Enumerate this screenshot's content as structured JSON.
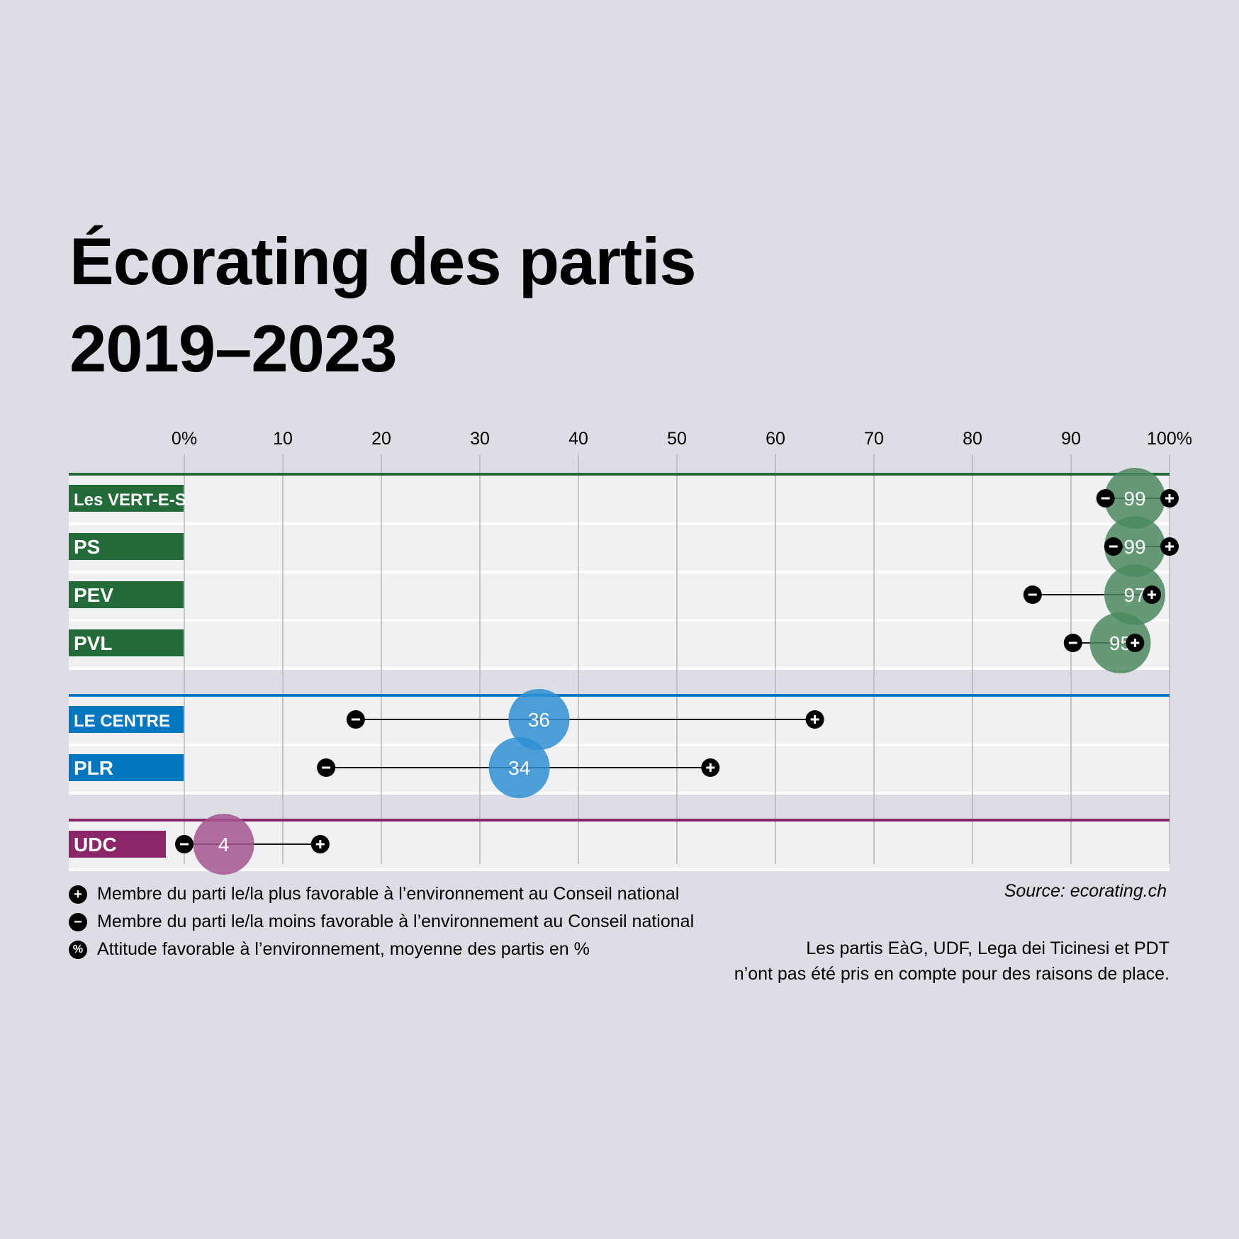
{
  "title_line1": "Écorating des partis",
  "title_line2": "2019–2023",
  "chart_data": {
    "type": "dot-range",
    "title": "Écorating des partis 2019–2023",
    "xlim": [
      0,
      100
    ],
    "ticks": [
      0,
      10,
      20,
      30,
      40,
      50,
      60,
      70,
      80,
      90,
      100
    ],
    "tick_labels": [
      "0%",
      "10",
      "20",
      "30",
      "40",
      "50",
      "60",
      "70",
      "80",
      "90",
      "100%"
    ],
    "groups": [
      {
        "color": "#236b38",
        "bubble": "#4c8a5f",
        "parties": [
          {
            "name": "Les VERT-E-S",
            "value": 99,
            "min": 93.5,
            "max": 100
          },
          {
            "name": "PS",
            "value": 99,
            "min": 94.3,
            "max": 100
          },
          {
            "name": "PEV",
            "value": 97,
            "min": 86.1,
            "max": 98.2
          },
          {
            "name": "PVL",
            "value": 95,
            "min": 90.2,
            "max": 96.5
          }
        ]
      },
      {
        "color": "#0077c0",
        "bubble": "#2f8fd2",
        "parties": [
          {
            "name": "LE CENTRE",
            "value": 36,
            "min": 17.4,
            "max": 64
          },
          {
            "name": "PLR",
            "value": 34,
            "min": 14.4,
            "max": 53.4
          }
        ]
      },
      {
        "color": "#8b2769",
        "bubble": "#a4558f",
        "parties": [
          {
            "name": "UDC",
            "value": 4,
            "min": 0,
            "max": 13.8
          }
        ]
      }
    ]
  },
  "legend": {
    "plus": "Membre du parti le/la plus favorable à l’environnement au Conseil national",
    "minus": "Membre du parti le/la moins favorable à l’environnement au Conseil national",
    "percent": "Attitude favorable à l’environnement, moyenne des partis en %",
    "plus_icon": "+",
    "minus_icon": "−",
    "percent_icon": "%"
  },
  "source": "Source: ecorating.ch",
  "note_line1": "Les partis EàG, UDF, Lega dei Ticinesi et PDT",
  "note_line2": "n’ont pas été pris en compte pour des raisons de place."
}
